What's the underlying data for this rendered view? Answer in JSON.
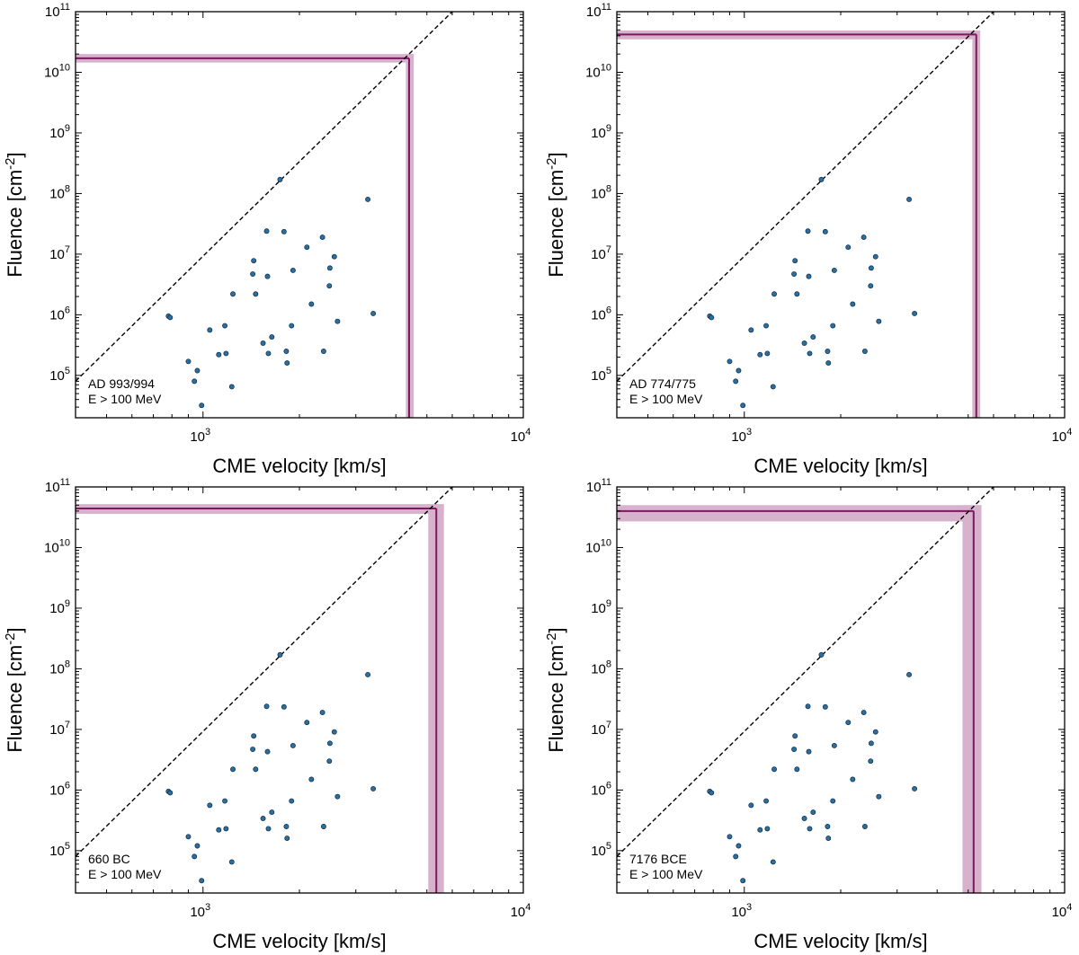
{
  "colors": {
    "band": "#d6b2cc",
    "line": "#7b1a5e",
    "point": "#2a6fa0",
    "point_edge": "#0d2b45",
    "diagonal": "#000000"
  },
  "chart_data": [
    {
      "type": "scatter",
      "annotation": [
        "AD 993/994",
        "E > 100 MeV"
      ],
      "xlabel": "CME velocity [km/s]",
      "ylabel_main": "Fluence [cm",
      "ylabel_sup": "-2",
      "ylabel_tail": "]",
      "xscale": "log",
      "yscale": "log",
      "xlim": [
        400,
        10000
      ],
      "ylim": [
        20000,
        100000000000
      ],
      "x_ticks": [
        {
          "v": 1000,
          "base": "10",
          "exp": "3"
        },
        {
          "v": 10000,
          "base": "10",
          "exp": "4"
        }
      ],
      "y_ticks": [
        {
          "v": 100000,
          "base": "10",
          "exp": "5"
        },
        {
          "v": 1000000,
          "base": "10",
          "exp": "6"
        },
        {
          "v": 10000000,
          "base": "10",
          "exp": "7"
        },
        {
          "v": 100000000,
          "base": "10",
          "exp": "8"
        },
        {
          "v": 1000000000,
          "base": "10",
          "exp": "9"
        },
        {
          "v": 10000000000,
          "base": "10",
          "exp": "10"
        },
        {
          "v": 100000000000,
          "base": "10",
          "exp": "11"
        }
      ],
      "event": {
        "velocity": 4400,
        "velocity_low": 4300,
        "velocity_high": 4550,
        "fluence": 17000000000,
        "fluence_low": 14500000000,
        "fluence_high": 20000000000
      }
    },
    {
      "type": "scatter",
      "annotation": [
        "AD 774/775",
        "E > 100 MeV"
      ],
      "xlabel": "CME velocity [km/s]",
      "ylabel_main": "Fluence [cm",
      "ylabel_sup": "-2",
      "ylabel_tail": "]",
      "xscale": "log",
      "yscale": "log",
      "xlim": [
        400,
        10000
      ],
      "ylim": [
        20000,
        100000000000
      ],
      "x_ticks": [
        {
          "v": 1000,
          "base": "10",
          "exp": "3"
        },
        {
          "v": 10000,
          "base": "10",
          "exp": "4"
        }
      ],
      "y_ticks": [
        {
          "v": 100000,
          "base": "10",
          "exp": "5"
        },
        {
          "v": 1000000,
          "base": "10",
          "exp": "6"
        },
        {
          "v": 10000000,
          "base": "10",
          "exp": "7"
        },
        {
          "v": 100000000,
          "base": "10",
          "exp": "8"
        },
        {
          "v": 1000000000,
          "base": "10",
          "exp": "9"
        },
        {
          "v": 10000000000,
          "base": "10",
          "exp": "10"
        },
        {
          "v": 100000000000,
          "base": "10",
          "exp": "11"
        }
      ],
      "event": {
        "velocity": 5300,
        "velocity_low": 5150,
        "velocity_high": 5450,
        "fluence": 42000000000,
        "fluence_low": 35000000000,
        "fluence_high": 49000000000
      }
    },
    {
      "type": "scatter",
      "annotation": [
        "660 BC",
        "E > 100 MeV"
      ],
      "xlabel": "CME velocity [km/s]",
      "ylabel_main": "Fluence [cm",
      "ylabel_sup": "-2",
      "ylabel_tail": "]",
      "xscale": "log",
      "yscale": "log",
      "xlim": [
        400,
        10000
      ],
      "ylim": [
        20000,
        100000000000
      ],
      "x_ticks": [
        {
          "v": 1000,
          "base": "10",
          "exp": "3"
        },
        {
          "v": 10000,
          "base": "10",
          "exp": "4"
        }
      ],
      "y_ticks": [
        {
          "v": 100000,
          "base": "10",
          "exp": "5"
        },
        {
          "v": 1000000,
          "base": "10",
          "exp": "6"
        },
        {
          "v": 10000000,
          "base": "10",
          "exp": "7"
        },
        {
          "v": 100000000,
          "base": "10",
          "exp": "8"
        },
        {
          "v": 1000000000,
          "base": "10",
          "exp": "9"
        },
        {
          "v": 10000000000,
          "base": "10",
          "exp": "10"
        },
        {
          "v": 100000000000,
          "base": "10",
          "exp": "11"
        }
      ],
      "event": {
        "velocity": 5350,
        "velocity_low": 5050,
        "velocity_high": 5650,
        "fluence": 44000000000,
        "fluence_low": 36000000000,
        "fluence_high": 52000000000
      }
    },
    {
      "type": "scatter",
      "annotation": [
        "7176 BCE",
        "E > 100 MeV"
      ],
      "xlabel": "CME velocity [km/s]",
      "ylabel_main": "Fluence [cm",
      "ylabel_sup": "-2",
      "ylabel_tail": "]",
      "xscale": "log",
      "yscale": "log",
      "xlim": [
        400,
        10000
      ],
      "ylim": [
        20000,
        100000000000
      ],
      "x_ticks": [
        {
          "v": 1000,
          "base": "10",
          "exp": "3"
        },
        {
          "v": 10000,
          "base": "10",
          "exp": "4"
        }
      ],
      "y_ticks": [
        {
          "v": 100000,
          "base": "10",
          "exp": "5"
        },
        {
          "v": 1000000,
          "base": "10",
          "exp": "6"
        },
        {
          "v": 10000000,
          "base": "10",
          "exp": "7"
        },
        {
          "v": 100000000,
          "base": "10",
          "exp": "8"
        },
        {
          "v": 1000000000,
          "base": "10",
          "exp": "9"
        },
        {
          "v": 10000000000,
          "base": "10",
          "exp": "10"
        },
        {
          "v": 100000000000,
          "base": "10",
          "exp": "11"
        }
      ],
      "event": {
        "velocity": 5200,
        "velocity_low": 4800,
        "velocity_high": 5500,
        "fluence": 40000000000,
        "fluence_low": 27000000000,
        "fluence_high": 50000000000
      }
    }
  ],
  "shared": {
    "diagonal": {
      "points": [
        [
          400,
          80000
        ],
        [
          6000,
          100000000000
        ]
      ]
    },
    "points": [
      {
        "x": 780,
        "y": 950000
      },
      {
        "x": 790,
        "y": 900000
      },
      {
        "x": 900,
        "y": 170000
      },
      {
        "x": 940,
        "y": 80000
      },
      {
        "x": 960,
        "y": 120000
      },
      {
        "x": 990,
        "y": 32000
      },
      {
        "x": 1050,
        "y": 560000
      },
      {
        "x": 1120,
        "y": 220000
      },
      {
        "x": 1170,
        "y": 660000
      },
      {
        "x": 1180,
        "y": 230000
      },
      {
        "x": 1240,
        "y": 2200000
      },
      {
        "x": 1230,
        "y": 65000
      },
      {
        "x": 1440,
        "y": 7800000
      },
      {
        "x": 1430,
        "y": 4700000
      },
      {
        "x": 1460,
        "y": 2200000
      },
      {
        "x": 1540,
        "y": 340000
      },
      {
        "x": 1580,
        "y": 24000000
      },
      {
        "x": 1590,
        "y": 4300000
      },
      {
        "x": 1600,
        "y": 230000
      },
      {
        "x": 1640,
        "y": 430000
      },
      {
        "x": 1740,
        "y": 170000000
      },
      {
        "x": 1790,
        "y": 23500000
      },
      {
        "x": 1820,
        "y": 250000
      },
      {
        "x": 1830,
        "y": 160000
      },
      {
        "x": 1890,
        "y": 660000
      },
      {
        "x": 1910,
        "y": 5400000
      },
      {
        "x": 2110,
        "y": 13000000
      },
      {
        "x": 2180,
        "y": 1500000
      },
      {
        "x": 2380,
        "y": 250000
      },
      {
        "x": 2360,
        "y": 19000000
      },
      {
        "x": 2490,
        "y": 5900000
      },
      {
        "x": 2480,
        "y": 3000000
      },
      {
        "x": 2570,
        "y": 9100000
      },
      {
        "x": 2630,
        "y": 780000
      },
      {
        "x": 3270,
        "y": 80000000
      },
      {
        "x": 3400,
        "y": 1050000
      }
    ]
  }
}
